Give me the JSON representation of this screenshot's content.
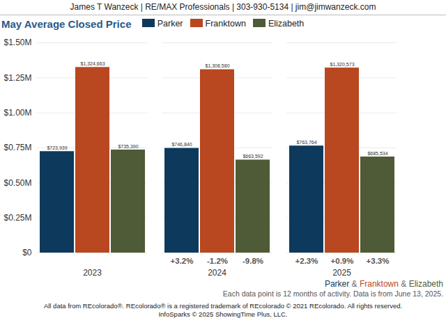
{
  "chart_data": {
    "type": "bar",
    "header": "James T Wanzeck | RE/MAX Professionals | 303-930-5134 | jim@jimwanzeck.com",
    "title": "May Average Closed Price",
    "categories": [
      "2023",
      "2024",
      "2025"
    ],
    "series": [
      {
        "name": "Parker",
        "color": "#0d3a5c",
        "values": [
          723939,
          746840,
          763764
        ],
        "value_labels": [
          "$723,939",
          "$746,840",
          "$763,764"
        ],
        "changes": [
          null,
          3.2,
          2.3
        ],
        "change_labels": [
          null,
          "+3.2%",
          "+2.3%"
        ]
      },
      {
        "name": "Franktown",
        "color": "#b9471f",
        "values": [
          1324663,
          1308580,
          1320573
        ],
        "value_labels": [
          "$1,324,663",
          "$1,308,580",
          "$1,320,573"
        ],
        "changes": [
          null,
          -1.2,
          0.9
        ],
        "change_labels": [
          null,
          "-1.2%",
          "+0.9%"
        ]
      },
      {
        "name": "Elizabeth",
        "color": "#4e5b36",
        "values": [
          735390,
          663592,
          685534
        ],
        "value_labels": [
          "$735,390",
          "$663,592",
          "$685,534"
        ],
        "changes": [
          null,
          -9.8,
          3.3
        ],
        "change_labels": [
          null,
          "-9.8%",
          "+3.3%"
        ]
      }
    ],
    "ylim": [
      0,
      1500000
    ],
    "yticks": [
      {
        "value": 0,
        "label": "$0"
      },
      {
        "value": 250000,
        "label": "$0.25M"
      },
      {
        "value": 500000,
        "label": "$0.50M"
      },
      {
        "value": 750000,
        "label": "$0.75M"
      },
      {
        "value": 1000000,
        "label": "$1.00M"
      },
      {
        "value": 1250000,
        "label": "$1.25M"
      },
      {
        "value": 1500000,
        "label": "$1.50M"
      }
    ],
    "grid": true,
    "legend": "top",
    "data_labels": true,
    "legend_separator": "&",
    "annotations": [
      "Each data point is 12 months of activity. Data is from June 13, 2025.",
      "All data from REcolorado®. REcolorado® is a registered trademark of REcolorado © 2021 REcolorado. All rights reserved. InfoSparks © 2025 ShowingTime Plus, LLC."
    ]
  }
}
